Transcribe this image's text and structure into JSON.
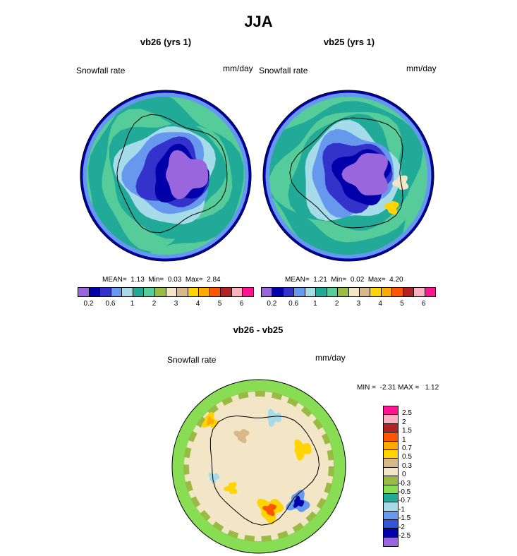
{
  "figure": {
    "title": "JJA",
    "panels": [
      {
        "title": "vb26 (yrs 1)",
        "left_label": "Snowfall rate",
        "right_label": "mm/day",
        "stats": "MEAN=  1.13  Min=  0.03  Max=  2.84"
      },
      {
        "title": "vb25 (yrs 1)",
        "left_label": "Snowfall rate",
        "right_label": "mm/day",
        "stats": "MEAN=  1.21  Min=  0.02  Max=  4.20"
      },
      {
        "title": "vb26 - vb25",
        "left_label": "Snowfall rate",
        "right_label": "mm/day",
        "stats": "MIN =  -2.31 MAX =   1.12"
      }
    ]
  },
  "chart_data": [
    {
      "type": "heatmap",
      "title": "vb26 (yrs 1)",
      "projection": "south polar stereographic",
      "variable": "Snowfall rate",
      "units": "mm/day",
      "mean": 1.13,
      "min": 0.03,
      "max": 2.84,
      "colorbar_levels": [
        0.2,
        0.4,
        0.6,
        0.8,
        1,
        1.5,
        2,
        2.5,
        3,
        3.5,
        4,
        4.5,
        5,
        5.5,
        6
      ],
      "colorbar_tick_labels": [
        "0.2",
        "0.6",
        "1",
        "2",
        "3",
        "4",
        "5",
        "6"
      ],
      "colorbar_colors": [
        "#9966dd",
        "#0000aa",
        "#3333cc",
        "#6699ee",
        "#a6dcea",
        "#22aa99",
        "#55cc99",
        "#99bb44",
        "#f2e6c6",
        "#d9b888",
        "#ffd400",
        "#ffaa00",
        "#ff5500",
        "#b22222",
        "#ffb0c0",
        "#ff1493"
      ]
    },
    {
      "type": "heatmap",
      "title": "vb25 (yrs 1)",
      "projection": "south polar stereographic",
      "variable": "Snowfall rate",
      "units": "mm/day",
      "mean": 1.21,
      "min": 0.02,
      "max": 4.2,
      "colorbar_levels": [
        0.2,
        0.4,
        0.6,
        0.8,
        1,
        1.5,
        2,
        2.5,
        3,
        3.5,
        4,
        4.5,
        5,
        5.5,
        6
      ],
      "colorbar_tick_labels": [
        "0.2",
        "0.6",
        "1",
        "2",
        "3",
        "4",
        "5",
        "6"
      ],
      "colorbar_colors": [
        "#9966dd",
        "#0000aa",
        "#3333cc",
        "#6699ee",
        "#a6dcea",
        "#22aa99",
        "#55cc99",
        "#99bb44",
        "#f2e6c6",
        "#d9b888",
        "#ffd400",
        "#ffaa00",
        "#ff5500",
        "#b22222",
        "#ffb0c0",
        "#ff1493"
      ]
    },
    {
      "type": "heatmap",
      "title": "vb26 - vb25",
      "projection": "south polar stereographic",
      "variable": "Snowfall rate",
      "units": "mm/day",
      "min": -2.31,
      "max": 1.12,
      "colorbar_tick_labels": [
        "2.5",
        "2",
        "1.5",
        "1",
        "0.7",
        "0.5",
        "0.3",
        "0",
        "-0.3",
        "-0.5",
        "-0.7",
        "-1",
        "-1.5",
        "-2",
        "-2.5"
      ],
      "colorbar_colors": [
        "#ff1493",
        "#ffb0c0",
        "#b22222",
        "#ff5500",
        "#ffaa00",
        "#ffd400",
        "#d9b888",
        "#f2e6c6",
        "#99bb44",
        "#88dd55",
        "#22aa99",
        "#a6dcea",
        "#6699ee",
        "#3355dd",
        "#0000aa",
        "#9966dd"
      ]
    }
  ]
}
